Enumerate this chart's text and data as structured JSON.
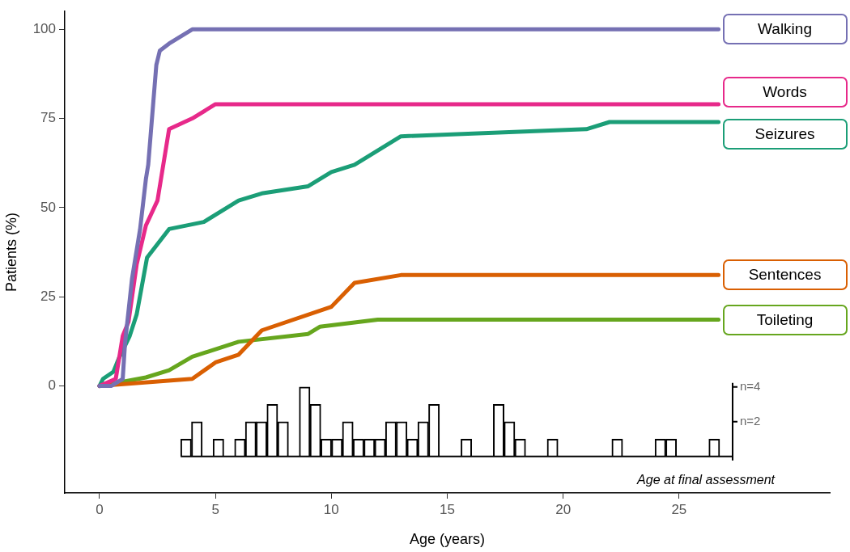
{
  "chart_data": {
    "type": "line",
    "xlabel": "Age (years)",
    "ylabel": "Patients (%)",
    "xlim": [
      -1.5,
      31.5
    ],
    "xticks": [
      0,
      5,
      10,
      15,
      20,
      25
    ],
    "ylim": [
      -30,
      105
    ],
    "yticks": [
      0,
      25,
      50,
      75,
      100
    ],
    "y2lim": [
      -2.1,
      25.6
    ],
    "y2ticks": [
      {
        "value": 2,
        "label": "n=2"
      },
      {
        "value": 4,
        "label": "n=4"
      }
    ],
    "marker": "none",
    "annotations": [
      "Age at final assessment"
    ],
    "series": [
      {
        "name": "Walking",
        "color": "#7570b3",
        "x": [
          0,
          0.5,
          1.0,
          1.1,
          1.4,
          1.75,
          2.0,
          2.1,
          2.45,
          2.6,
          3.0,
          4.0,
          26.7
        ],
        "values": [
          0,
          0,
          2,
          12,
          30,
          44,
          58,
          62,
          90,
          94,
          96,
          100,
          100
        ]
      },
      {
        "name": "Words",
        "color": "#e7298a",
        "x": [
          0,
          0.7,
          1.0,
          1.25,
          1.6,
          2.0,
          2.5,
          3.0,
          4.0,
          5.0,
          26.7
        ],
        "values": [
          0,
          2,
          14,
          18,
          34,
          45,
          52,
          72,
          75,
          79,
          79
        ]
      },
      {
        "name": "Seizures",
        "color": "#1b9e77",
        "x": [
          0,
          0.15,
          0.6,
          0.85,
          1.3,
          1.6,
          2.05,
          3.0,
          4.5,
          6.0,
          7.0,
          9.0,
          10.0,
          11.0,
          13.0,
          21.0,
          22.0,
          26.7
        ],
        "values": [
          0,
          2,
          4,
          8,
          14,
          20,
          36,
          44,
          46,
          52,
          54,
          56,
          60,
          62,
          70,
          72,
          74,
          74
        ]
      },
      {
        "name": "Sentences",
        "color": "#d95f02",
        "x": [
          0,
          4.0,
          5.0,
          6.0,
          7.0,
          10.0,
          11.0,
          13.0,
          26.7
        ],
        "values": [
          0,
          2,
          6.6,
          8.8,
          15.6,
          22.2,
          28.9,
          31.1,
          31.1
        ]
      },
      {
        "name": "Toileting",
        "color": "#66a61e",
        "x": [
          0,
          2.0,
          3.0,
          4.0,
          6.0,
          9.0,
          9.5,
          12.0,
          26.7
        ],
        "values": [
          0,
          2.4,
          4.4,
          8.2,
          12.4,
          14.6,
          16.6,
          18.6,
          18.6
        ]
      },
      {
        "type": "bar",
        "axis": "y2",
        "color": "#ffffff",
        "x": [
          3.733,
          4.198,
          5.128,
          6.058,
          6.523,
          6.988,
          7.453,
          7.918,
          8.848,
          9.313,
          9.778,
          10.243,
          10.708,
          11.173,
          11.638,
          12.103,
          12.568,
          13.033,
          13.498,
          13.963,
          14.428,
          15.823,
          17.218,
          17.683,
          18.148,
          19.543,
          22.333,
          24.193,
          24.658,
          26.518
        ],
        "values": [
          1,
          2,
          1,
          1,
          2,
          2,
          3,
          2,
          4,
          3,
          1,
          1,
          2,
          1,
          1,
          1,
          2,
          2,
          1,
          2,
          3,
          1,
          3,
          2,
          1,
          1,
          1,
          1,
          1,
          1
        ]
      }
    ]
  }
}
